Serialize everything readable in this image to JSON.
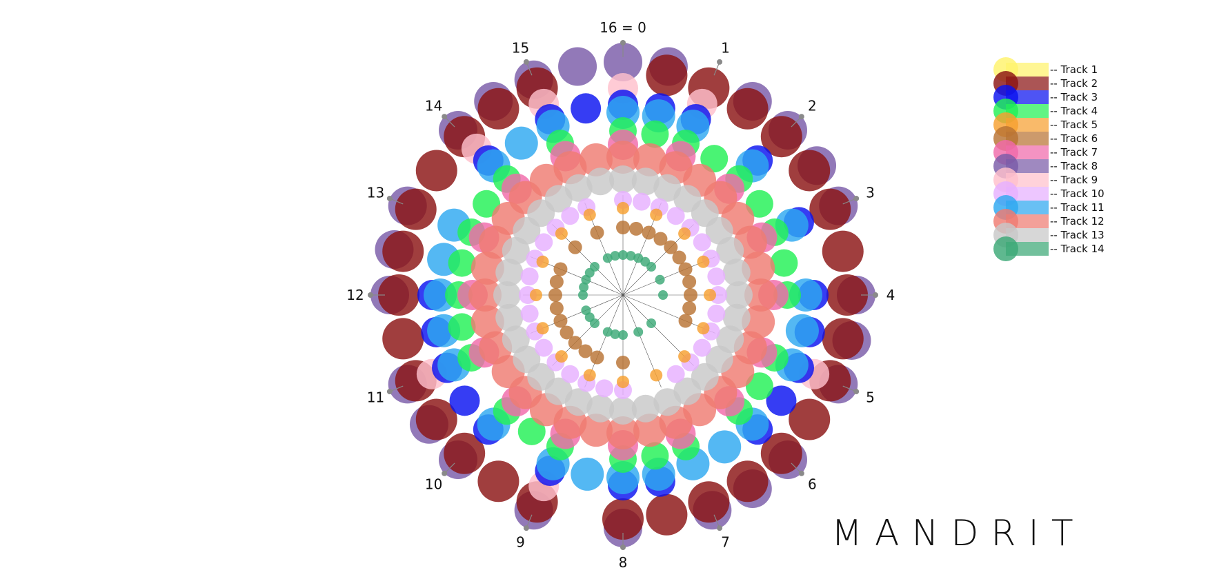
{
  "brand": "MANDRIT",
  "chart_data": {
    "type": "scatter",
    "subtype": "radial-rhythm",
    "steps": 16,
    "step_labels": [
      "16 = 0",
      "1",
      "2",
      "3",
      "4",
      "5",
      "6",
      "7",
      "8",
      "9",
      "10",
      "11",
      "12",
      "13",
      "14",
      "15"
    ],
    "legend_placement": "top-right",
    "grid": true,
    "series": [
      {
        "name": "Track 1",
        "color": "#fff36b",
        "ring": 0,
        "hits": []
      },
      {
        "name": "Track 2",
        "color": "#8b1414",
        "ring": 13,
        "hits": [
          0.5,
          1,
          1.5,
          2,
          2.5,
          3,
          3.5,
          4,
          4.5,
          5,
          5.5,
          6,
          6.5,
          7,
          7.5,
          8,
          9,
          9.5,
          10,
          10.5,
          11,
          11.5,
          12,
          12.5,
          13,
          13.5,
          14,
          14.5,
          15
        ]
      },
      {
        "name": "Track 3",
        "color": "#0a12f0",
        "ring": 11,
        "hits": [
          0,
          0.5,
          1,
          2,
          3,
          4,
          4.5,
          5,
          5.5,
          6,
          7.5,
          8,
          9,
          10,
          10.5,
          11,
          11.5,
          12,
          14,
          15,
          15.5
        ]
      },
      {
        "name": "Track 4",
        "color": "#22f055",
        "ring": 9,
        "hits": [
          0,
          0.5,
          1,
          1.5,
          2,
          2.5,
          3,
          3.5,
          4,
          5,
          5.5,
          6,
          7,
          7.5,
          8,
          9,
          9.5,
          10,
          11,
          11.5,
          12,
          12.5,
          13,
          13.5,
          14,
          15
        ]
      },
      {
        "name": "Track 5",
        "color": "#f7a030",
        "ring": 4,
        "hits": [
          0,
          1,
          2,
          3,
          4,
          5,
          6,
          7,
          8,
          9,
          10,
          11,
          12,
          13,
          14,
          15
        ]
      },
      {
        "name": "Track 6",
        "color": "#b87333",
        "ring": 3,
        "hits": [
          0,
          0.5,
          1,
          1.5,
          2,
          2.5,
          3,
          3.5,
          4,
          4.5,
          5,
          8,
          9,
          9.5,
          10,
          10.5,
          11,
          11.5,
          12,
          12.5,
          13,
          14,
          15
        ]
      },
      {
        "name": "Track 7",
        "color": "#f06aaa",
        "ring": 8,
        "hits": [
          0,
          1,
          2,
          3,
          4,
          5,
          6,
          7,
          8,
          9,
          10,
          11,
          12,
          13,
          14,
          15
        ]
      },
      {
        "name": "Track 8",
        "color": "#7a5ca8",
        "ring": 14,
        "hits": [
          0,
          0.5,
          1.5,
          2,
          2.5,
          3,
          4,
          4.5,
          5,
          6,
          6.5,
          7,
          8,
          9,
          10,
          10.5,
          11,
          12,
          12.5,
          13,
          14,
          14.5,
          15,
          15.5
        ]
      },
      {
        "name": "Track 9",
        "color": "#ffc0cc",
        "ring": 12,
        "hits": [
          0,
          1,
          5,
          9,
          11,
          14,
          15
        ]
      },
      {
        "name": "Track 10",
        "color": "#e6b0ff",
        "ring": 5,
        "hits": [
          0,
          0.5,
          1,
          1.5,
          2,
          2.5,
          3,
          3.5,
          4,
          4.5,
          5,
          5.5,
          6,
          6.5,
          8,
          8.5,
          9,
          9.5,
          10,
          10.5,
          11,
          11.5,
          12,
          12.5,
          13,
          13.5,
          14,
          14.5,
          15
        ]
      },
      {
        "name": "Track 11",
        "color": "#2ea8f0",
        "ring": 10,
        "hits": [
          0,
          0.5,
          1,
          2,
          3,
          4,
          4.5,
          5,
          6,
          6.5,
          7,
          7.5,
          8,
          8.5,
          9,
          10,
          11,
          11.5,
          12,
          12.5,
          13,
          14,
          14.5,
          15
        ]
      },
      {
        "name": "Track 12",
        "color": "#ef7b72",
        "ring": 7,
        "hits": [
          0,
          0.5,
          1,
          1.5,
          2,
          2.5,
          3,
          3.5,
          4,
          4.5,
          5,
          5.5,
          6,
          6.5,
          7,
          7.5,
          8,
          8.5,
          9,
          9.5,
          10,
          10.5,
          11,
          11.5,
          12,
          12.5,
          13,
          13.5,
          14,
          14.5,
          15,
          15.5
        ]
      },
      {
        "name": "Track 13",
        "color": "#c8c8c8",
        "ring": 6,
        "hits": [
          0,
          0.5,
          1,
          1.5,
          2,
          2.5,
          3,
          3.5,
          4,
          4.5,
          5,
          5.5,
          6,
          6.5,
          7,
          7.5,
          8,
          8.5,
          9,
          9.5,
          10,
          10.5,
          11,
          11.5,
          12,
          12.5,
          13,
          13.5,
          14,
          14.5,
          15,
          15.5
        ]
      },
      {
        "name": "Track 14",
        "color": "#3ca876",
        "ring": 2,
        "hits": [
          0,
          0.5,
          1,
          1.5,
          2,
          3,
          4,
          6,
          7,
          8,
          8.5,
          9,
          10,
          10.5,
          11,
          12,
          12.5,
          13,
          13.5,
          14,
          15,
          15.5
        ]
      }
    ]
  }
}
